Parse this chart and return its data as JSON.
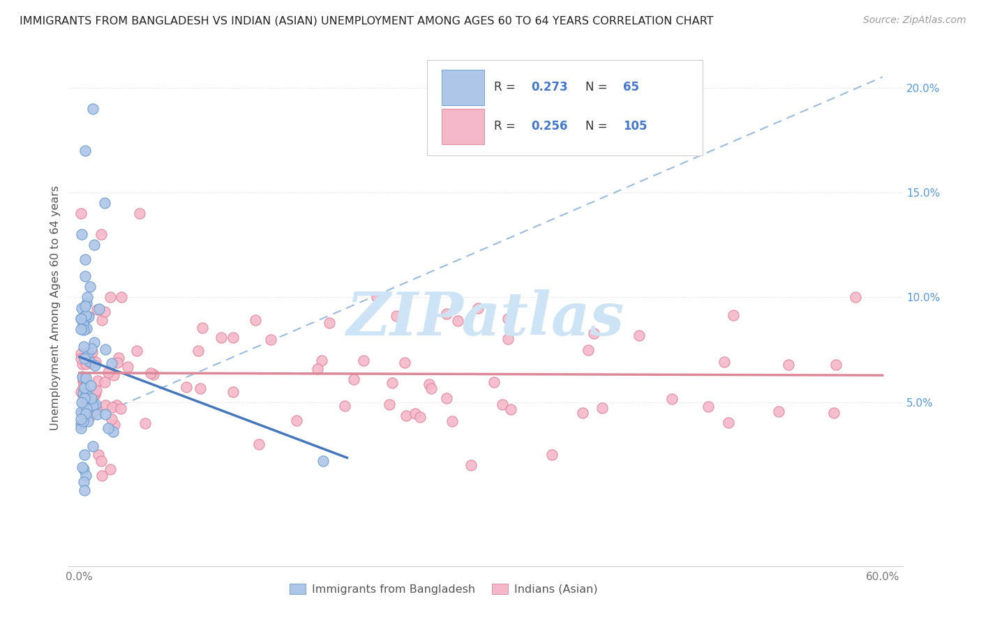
{
  "title": "IMMIGRANTS FROM BANGLADESH VS INDIAN (ASIAN) UNEMPLOYMENT AMONG AGES 60 TO 64 YEARS CORRELATION CHART",
  "source": "Source: ZipAtlas.com",
  "ylabel": "Unemployment Among Ages 60 to 64 years",
  "legend_label1": "Immigrants from Bangladesh",
  "legend_label2": "Indians (Asian)",
  "r1": "0.273",
  "n1": "65",
  "r2": "0.256",
  "n2": "105",
  "color_blue_fill": "#aec6e8",
  "color_blue_edge": "#6699cc",
  "color_pink_fill": "#f5b8c8",
  "color_pink_edge": "#e0829a",
  "color_line_blue": "#4477bb",
  "color_line_pink": "#dd8899",
  "color_dashed": "#99bbdd",
  "color_text_blue": "#4477cc",
  "color_text_pink": "#dd6688",
  "ytick_color": "#5599dd",
  "watermark_color": "#cce4f5",
  "background": "#ffffff"
}
